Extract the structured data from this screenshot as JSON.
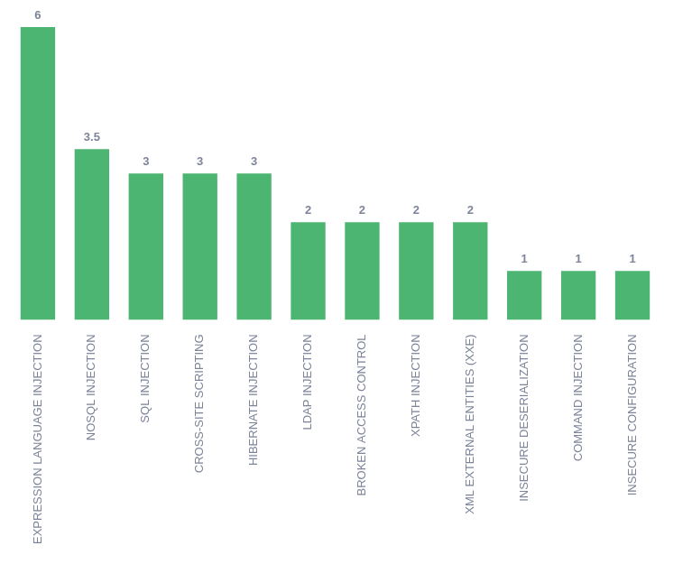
{
  "chart_data": {
    "type": "bar",
    "categories": [
      "EXPRESSION LANGUAGE INJECTION",
      "NOSQL INJECTION",
      "SQL INJECTION",
      "CROSS-SITE SCRIPTING",
      "HIBERNATE INJECTION",
      "LDAP INJECTION",
      "BROKEN ACCESS CONTROL",
      "XPATH INJECTION",
      "XML EXTERNAL ENTITIES (XXE)",
      "INSECURE DESERIALIZATION",
      "COMMAND INJECTION",
      "INSECURE CONFIGURATION"
    ],
    "values": [
      6,
      3.5,
      3,
      3,
      3,
      2,
      2,
      2,
      2,
      1,
      1,
      1
    ],
    "color": "#4cb572",
    "data_labels": true,
    "tick_labels": "x",
    "grid": false
  }
}
